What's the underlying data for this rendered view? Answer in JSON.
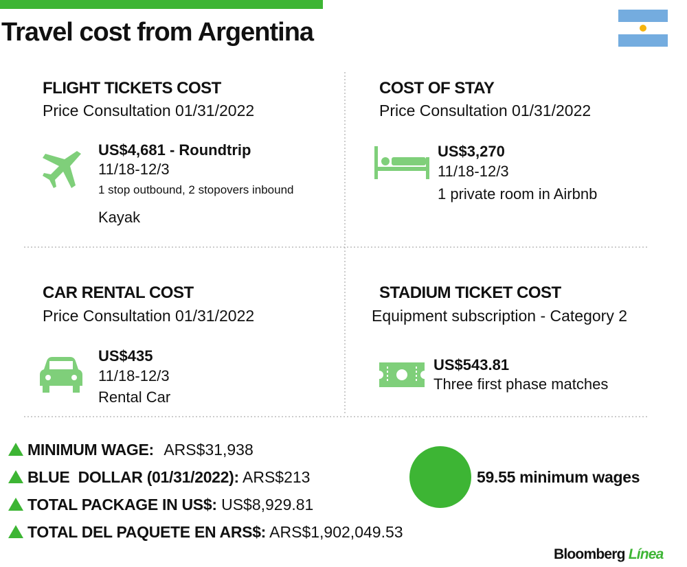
{
  "header": {
    "title": "Travel cost from Argentina"
  },
  "sections": [
    {
      "title": "FLIGHT TICKETS COST",
      "subtitle": "Price Consultation 01/31/2022",
      "price": "US$4,681 - Roundtrip",
      "dates": "11/18-12/3",
      "note": "1 stop outbound, 2 stopovers inbound",
      "source": "Kayak"
    },
    {
      "title": "COST OF STAY",
      "subtitle": "Price Consultation 01/31/2022",
      "price": "US$3,270",
      "dates": "11/18-12/3",
      "note": "1 private room in Airbnb"
    },
    {
      "title": "CAR RENTAL COST",
      "subtitle": "Price Consultation 01/31/2022",
      "price": "US$435",
      "dates": "11/18-12/3",
      "note": "Rental Car"
    },
    {
      "title": "STADIUM TICKET COST",
      "subtitle": "Equipment subscription - Category 2",
      "price": "US$543.81",
      "note": "Three first phase matches"
    }
  ],
  "summary": {
    "items": [
      {
        "label": "MINIMUM WAGE:",
        "value": "ARS$31,938"
      },
      {
        "label": "BLUE  DOLLAR (01/31/2022):",
        "value": "ARS$213"
      },
      {
        "label": "TOTAL PACKAGE IN US$:",
        "value": "US$8,929.81"
      },
      {
        "label": "TOTAL DEL PAQUETE EN ARS$:",
        "value": "ARS$1,902,049.53"
      }
    ],
    "highlight": "59.55 minimum wages"
  },
  "footer": {
    "brand": "Bloomberg",
    "brand_accent": "Línea"
  }
}
